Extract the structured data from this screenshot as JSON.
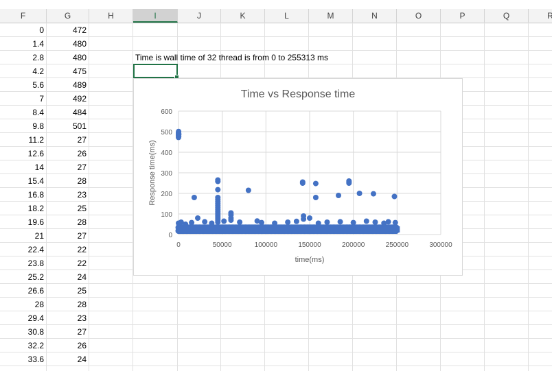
{
  "columns": [
    "F",
    "G",
    "H",
    "I",
    "J",
    "K",
    "L",
    "M",
    "N",
    "O",
    "P",
    "Q",
    "R"
  ],
  "selected_column": "I",
  "rows": [
    {
      "f": "0",
      "g": "472"
    },
    {
      "f": "1.4",
      "g": "480"
    },
    {
      "f": "2.8",
      "g": "480"
    },
    {
      "f": "4.2",
      "g": "475"
    },
    {
      "f": "5.6",
      "g": "489"
    },
    {
      "f": "7",
      "g": "492"
    },
    {
      "f": "8.4",
      "g": "484"
    },
    {
      "f": "9.8",
      "g": "501"
    },
    {
      "f": "11.2",
      "g": "27"
    },
    {
      "f": "12.6",
      "g": "26"
    },
    {
      "f": "14",
      "g": "27"
    },
    {
      "f": "15.4",
      "g": "28"
    },
    {
      "f": "16.8",
      "g": "23"
    },
    {
      "f": "18.2",
      "g": "25"
    },
    {
      "f": "19.6",
      "g": "28"
    },
    {
      "f": "21",
      "g": "27"
    },
    {
      "f": "22.4",
      "g": "22"
    },
    {
      "f": "23.8",
      "g": "22"
    },
    {
      "f": "25.2",
      "g": "24"
    },
    {
      "f": "26.6",
      "g": "25"
    },
    {
      "f": "28",
      "g": "28"
    },
    {
      "f": "29.4",
      "g": "23"
    },
    {
      "f": "30.8",
      "g": "27"
    },
    {
      "f": "32.2",
      "g": "26"
    },
    {
      "f": "33.6",
      "g": "24"
    }
  ],
  "note": "Time is wall time of 32 thread is from 0 to 255313 ms",
  "chart_data": {
    "type": "scatter",
    "title": "Time vs Response time",
    "xlabel": "time(ms)",
    "ylabel": "Response time(ms)",
    "xlim": [
      0,
      300000
    ],
    "ylim": [
      0,
      600
    ],
    "x_ticks": [
      "0",
      "50000",
      "100000",
      "150000",
      "200000",
      "250000",
      "300000"
    ],
    "y_ticks": [
      "0",
      "100",
      "200",
      "300",
      "400",
      "500",
      "600"
    ],
    "grid": true,
    "legend": "none",
    "marker_color": "#4472c4",
    "band": {
      "x_range": [
        0,
        250000
      ],
      "y_range": [
        10,
        40
      ],
      "note": "dense cluster of points along the bottom"
    },
    "points": [
      [
        0,
        472
      ],
      [
        0,
        480
      ],
      [
        0,
        485
      ],
      [
        0,
        490
      ],
      [
        0,
        495
      ],
      [
        100,
        501
      ],
      [
        200,
        478
      ],
      [
        300,
        488
      ],
      [
        18000,
        180
      ],
      [
        22000,
        80
      ],
      [
        45000,
        265
      ],
      [
        45000,
        258
      ],
      [
        45000,
        218
      ],
      [
        45000,
        180
      ],
      [
        45000,
        170
      ],
      [
        45000,
        160
      ],
      [
        45000,
        150
      ],
      [
        45000,
        140
      ],
      [
        45000,
        130
      ],
      [
        45000,
        120
      ],
      [
        45000,
        110
      ],
      [
        45000,
        100
      ],
      [
        45000,
        90
      ],
      [
        45000,
        80
      ],
      [
        45000,
        70
      ],
      [
        45000,
        60
      ],
      [
        60000,
        105
      ],
      [
        60000,
        95
      ],
      [
        60000,
        80
      ],
      [
        60000,
        70
      ],
      [
        80000,
        215
      ],
      [
        142000,
        255
      ],
      [
        142000,
        250
      ],
      [
        143000,
        90
      ],
      [
        143000,
        75
      ],
      [
        150000,
        80
      ],
      [
        157000,
        248
      ],
      [
        157000,
        180
      ],
      [
        183000,
        190
      ],
      [
        195000,
        260
      ],
      [
        195000,
        255
      ],
      [
        195000,
        250
      ],
      [
        207000,
        200
      ],
      [
        223000,
        198
      ],
      [
        247000,
        185
      ],
      [
        0,
        55
      ],
      [
        3000,
        60
      ],
      [
        8000,
        50
      ],
      [
        15000,
        58
      ],
      [
        30000,
        62
      ],
      [
        38000,
        55
      ],
      [
        52000,
        65
      ],
      [
        70000,
        60
      ],
      [
        90000,
        66
      ],
      [
        95000,
        58
      ],
      [
        110000,
        55
      ],
      [
        125000,
        60
      ],
      [
        135000,
        64
      ],
      [
        160000,
        55
      ],
      [
        170000,
        60
      ],
      [
        185000,
        62
      ],
      [
        200000,
        58
      ],
      [
        215000,
        65
      ],
      [
        225000,
        60
      ],
      [
        235000,
        55
      ],
      [
        240000,
        62
      ],
      [
        248000,
        58
      ]
    ]
  }
}
